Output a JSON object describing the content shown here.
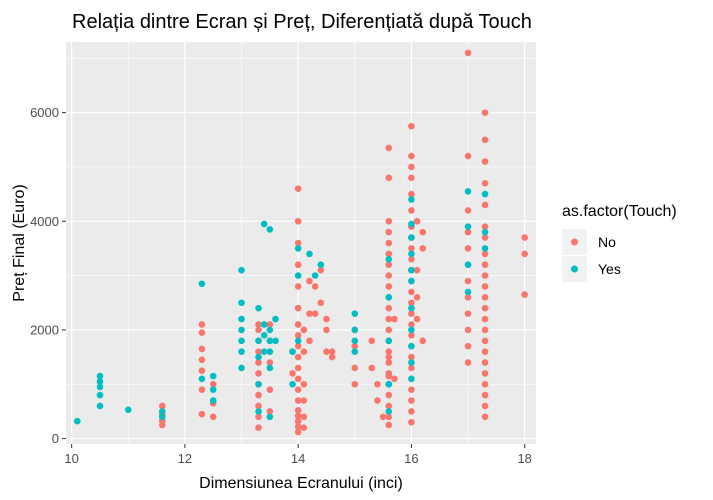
{
  "chart_data": {
    "type": "scatter",
    "title": "Relația dintre Ecran și Preț, Diferențiată după Touch",
    "xlabel": "Dimensiunea Ecranului (inci)",
    "ylabel": "Preț Final (Euro)",
    "xlim": [
      9.9,
      18.2
    ],
    "ylim": [
      -100,
      7300
    ],
    "x_ticks": [
      10,
      12,
      14,
      16,
      18
    ],
    "y_ticks": [
      0,
      2000,
      4000,
      6000
    ],
    "x_tick_labels": [
      "10",
      "12",
      "14",
      "16",
      "18"
    ],
    "y_tick_labels": [
      "0",
      "2000",
      "4000",
      "6000"
    ],
    "grid": true,
    "legend": {
      "title": "as.factor(Touch)",
      "position": "right",
      "entries": [
        {
          "label": "No",
          "color": "#F8766D"
        },
        {
          "label": "Yes",
          "color": "#00BFC4"
        }
      ]
    },
    "series": [
      {
        "name": "No",
        "color": "#F8766D",
        "points": [
          [
            11.6,
            250
          ],
          [
            11.6,
            330
          ],
          [
            11.6,
            420
          ],
          [
            11.6,
            480
          ],
          [
            11.6,
            600
          ],
          [
            12.3,
            450
          ],
          [
            12.3,
            900
          ],
          [
            12.3,
            1250
          ],
          [
            12.3,
            1450
          ],
          [
            12.3,
            1650
          ],
          [
            12.3,
            1950
          ],
          [
            12.3,
            2100
          ],
          [
            12.5,
            400
          ],
          [
            12.5,
            650
          ],
          [
            12.5,
            1000
          ],
          [
            13.3,
            200
          ],
          [
            13.3,
            400
          ],
          [
            13.3,
            600
          ],
          [
            13.3,
            800
          ],
          [
            13.3,
            1000
          ],
          [
            13.3,
            1200
          ],
          [
            13.3,
            1400
          ],
          [
            13.3,
            1600
          ],
          [
            13.3,
            1800
          ],
          [
            13.3,
            2000
          ],
          [
            13.3,
            2100
          ],
          [
            13.5,
            500
          ],
          [
            13.5,
            900
          ],
          [
            13.5,
            1400
          ],
          [
            13.5,
            1800
          ],
          [
            13.5,
            2100
          ],
          [
            13.9,
            1200
          ],
          [
            13.9,
            1600
          ],
          [
            14.0,
            120
          ],
          [
            14.0,
            220
          ],
          [
            14.0,
            320
          ],
          [
            14.0,
            420
          ],
          [
            14.0,
            520
          ],
          [
            14.0,
            700
          ],
          [
            14.0,
            900
          ],
          [
            14.0,
            1100
          ],
          [
            14.0,
            1300
          ],
          [
            14.0,
            1500
          ],
          [
            14.0,
            1700
          ],
          [
            14.0,
            1900
          ],
          [
            14.0,
            2100
          ],
          [
            14.0,
            2400
          ],
          [
            14.0,
            2800
          ],
          [
            14.0,
            3200
          ],
          [
            14.0,
            3600
          ],
          [
            14.0,
            4000
          ],
          [
            14.0,
            4600
          ],
          [
            14.1,
            200
          ],
          [
            14.1,
            400
          ],
          [
            14.1,
            700
          ],
          [
            14.1,
            1000
          ],
          [
            14.1,
            1600
          ],
          [
            14.1,
            2000
          ],
          [
            14.2,
            1800
          ],
          [
            14.2,
            2300
          ],
          [
            14.2,
            2900
          ],
          [
            14.3,
            2300
          ],
          [
            14.3,
            2800
          ],
          [
            14.4,
            3100
          ],
          [
            14.4,
            2500
          ],
          [
            14.5,
            1600
          ],
          [
            14.5,
            2000
          ],
          [
            14.5,
            2200
          ],
          [
            14.6,
            1500
          ],
          [
            14.6,
            1600
          ],
          [
            15.0,
            1000
          ],
          [
            15.0,
            1300
          ],
          [
            15.0,
            1700
          ],
          [
            15.0,
            2000
          ],
          [
            15.3,
            1300
          ],
          [
            15.3,
            1800
          ],
          [
            15.4,
            700
          ],
          [
            15.4,
            1000
          ],
          [
            15.5,
            400
          ],
          [
            15.6,
            1150
          ],
          [
            15.6,
            1500
          ],
          [
            15.6,
            250
          ],
          [
            15.6,
            400
          ],
          [
            15.6,
            600
          ],
          [
            15.6,
            800
          ],
          [
            15.6,
            1000
          ],
          [
            15.6,
            1200
          ],
          [
            15.6,
            1400
          ],
          [
            15.6,
            1600
          ],
          [
            15.6,
            1800
          ],
          [
            15.6,
            2000
          ],
          [
            15.6,
            2200
          ],
          [
            15.6,
            2400
          ],
          [
            15.6,
            2600
          ],
          [
            15.6,
            2800
          ],
          [
            15.6,
            3000
          ],
          [
            15.6,
            3200
          ],
          [
            15.6,
            3400
          ],
          [
            15.6,
            3600
          ],
          [
            15.6,
            3800
          ],
          [
            15.6,
            4000
          ],
          [
            15.6,
            4800
          ],
          [
            15.6,
            5350
          ],
          [
            15.7,
            1100
          ],
          [
            15.7,
            2200
          ],
          [
            16.0,
            300
          ],
          [
            16.0,
            500
          ],
          [
            16.0,
            700
          ],
          [
            16.0,
            900
          ],
          [
            16.0,
            1100
          ],
          [
            16.0,
            1300
          ],
          [
            16.0,
            1500
          ],
          [
            16.0,
            1700
          ],
          [
            16.0,
            1900
          ],
          [
            16.0,
            2100
          ],
          [
            16.0,
            2300
          ],
          [
            16.0,
            2500
          ],
          [
            16.0,
            2700
          ],
          [
            16.0,
            2900
          ],
          [
            16.0,
            3100
          ],
          [
            16.0,
            3300
          ],
          [
            16.0,
            3500
          ],
          [
            16.0,
            3700
          ],
          [
            16.0,
            3900
          ],
          [
            16.0,
            4200
          ],
          [
            16.0,
            4500
          ],
          [
            16.0,
            4800
          ],
          [
            16.0,
            5000
          ],
          [
            16.0,
            5200
          ],
          [
            16.0,
            5750
          ],
          [
            16.1,
            2200
          ],
          [
            16.1,
            2600
          ],
          [
            16.1,
            3100
          ],
          [
            16.1,
            4000
          ],
          [
            16.2,
            1800
          ],
          [
            16.2,
            3500
          ],
          [
            16.2,
            3800
          ],
          [
            17.0,
            1400
          ],
          [
            17.0,
            1700
          ],
          [
            17.0,
            2000
          ],
          [
            17.0,
            2300
          ],
          [
            17.0,
            2600
          ],
          [
            17.0,
            2900
          ],
          [
            17.0,
            3200
          ],
          [
            17.0,
            3500
          ],
          [
            17.0,
            3800
          ],
          [
            17.0,
            4200
          ],
          [
            17.0,
            5200
          ],
          [
            17.0,
            7100
          ],
          [
            17.3,
            400
          ],
          [
            17.3,
            600
          ],
          [
            17.3,
            800
          ],
          [
            17.3,
            1000
          ],
          [
            17.3,
            1200
          ],
          [
            17.3,
            1400
          ],
          [
            17.3,
            1600
          ],
          [
            17.3,
            1800
          ],
          [
            17.3,
            2000
          ],
          [
            17.3,
            2200
          ],
          [
            17.3,
            2400
          ],
          [
            17.3,
            2600
          ],
          [
            17.3,
            2800
          ],
          [
            17.3,
            3000
          ],
          [
            17.3,
            3200
          ],
          [
            17.3,
            3400
          ],
          [
            17.3,
            3700
          ],
          [
            17.3,
            3900
          ],
          [
            17.3,
            4300
          ],
          [
            17.3,
            4700
          ],
          [
            17.3,
            5100
          ],
          [
            17.3,
            5500
          ],
          [
            17.3,
            6000
          ],
          [
            18.0,
            2650
          ],
          [
            18.0,
            3400
          ],
          [
            18.0,
            3700
          ]
        ]
      },
      {
        "name": "Yes",
        "color": "#00BFC4",
        "points": [
          [
            10.1,
            320
          ],
          [
            10.5,
            600
          ],
          [
            10.5,
            800
          ],
          [
            10.5,
            950
          ],
          [
            10.5,
            1050
          ],
          [
            10.5,
            1150
          ],
          [
            11.0,
            530
          ],
          [
            11.6,
            400
          ],
          [
            11.6,
            500
          ],
          [
            12.3,
            1100
          ],
          [
            12.3,
            2850
          ],
          [
            12.5,
            700
          ],
          [
            12.5,
            900
          ],
          [
            12.5,
            1150
          ],
          [
            13.0,
            1300
          ],
          [
            13.0,
            1600
          ],
          [
            13.0,
            1800
          ],
          [
            13.0,
            2000
          ],
          [
            13.0,
            2200
          ],
          [
            13.0,
            2500
          ],
          [
            13.0,
            3100
          ],
          [
            13.3,
            500
          ],
          [
            13.3,
            1000
          ],
          [
            13.3,
            1500
          ],
          [
            13.3,
            1800
          ],
          [
            13.3,
            2400
          ],
          [
            13.4,
            1600
          ],
          [
            13.4,
            1900
          ],
          [
            13.4,
            2100
          ],
          [
            13.4,
            3950
          ],
          [
            13.5,
            400
          ],
          [
            13.5,
            1300
          ],
          [
            13.5,
            1600
          ],
          [
            13.5,
            1800
          ],
          [
            13.5,
            2000
          ],
          [
            13.5,
            3850
          ],
          [
            13.6,
            1800
          ],
          [
            13.6,
            2200
          ],
          [
            13.9,
            1000
          ],
          [
            13.9,
            1600
          ],
          [
            14.0,
            1800
          ],
          [
            14.0,
            3000
          ],
          [
            14.0,
            3500
          ],
          [
            14.2,
            3400
          ],
          [
            14.3,
            3000
          ],
          [
            14.4,
            3200
          ],
          [
            15.0,
            1600
          ],
          [
            15.0,
            1800
          ],
          [
            15.0,
            2000
          ],
          [
            15.0,
            2300
          ],
          [
            15.6,
            500
          ],
          [
            15.6,
            1000
          ],
          [
            15.6,
            1800
          ],
          [
            15.6,
            2600
          ],
          [
            15.6,
            3300
          ],
          [
            16.0,
            1100
          ],
          [
            16.0,
            1400
          ],
          [
            16.0,
            1700
          ],
          [
            16.0,
            2000
          ],
          [
            16.0,
            2400
          ],
          [
            16.0,
            2900
          ],
          [
            16.0,
            3100
          ],
          [
            16.0,
            3400
          ],
          [
            16.0,
            3700
          ],
          [
            16.0,
            3950
          ],
          [
            16.0,
            4400
          ],
          [
            17.0,
            2700
          ],
          [
            17.0,
            3200
          ],
          [
            17.0,
            3900
          ],
          [
            17.0,
            4550
          ],
          [
            17.3,
            3500
          ],
          [
            17.3,
            3800
          ],
          [
            17.3,
            4500
          ]
        ]
      }
    ]
  }
}
